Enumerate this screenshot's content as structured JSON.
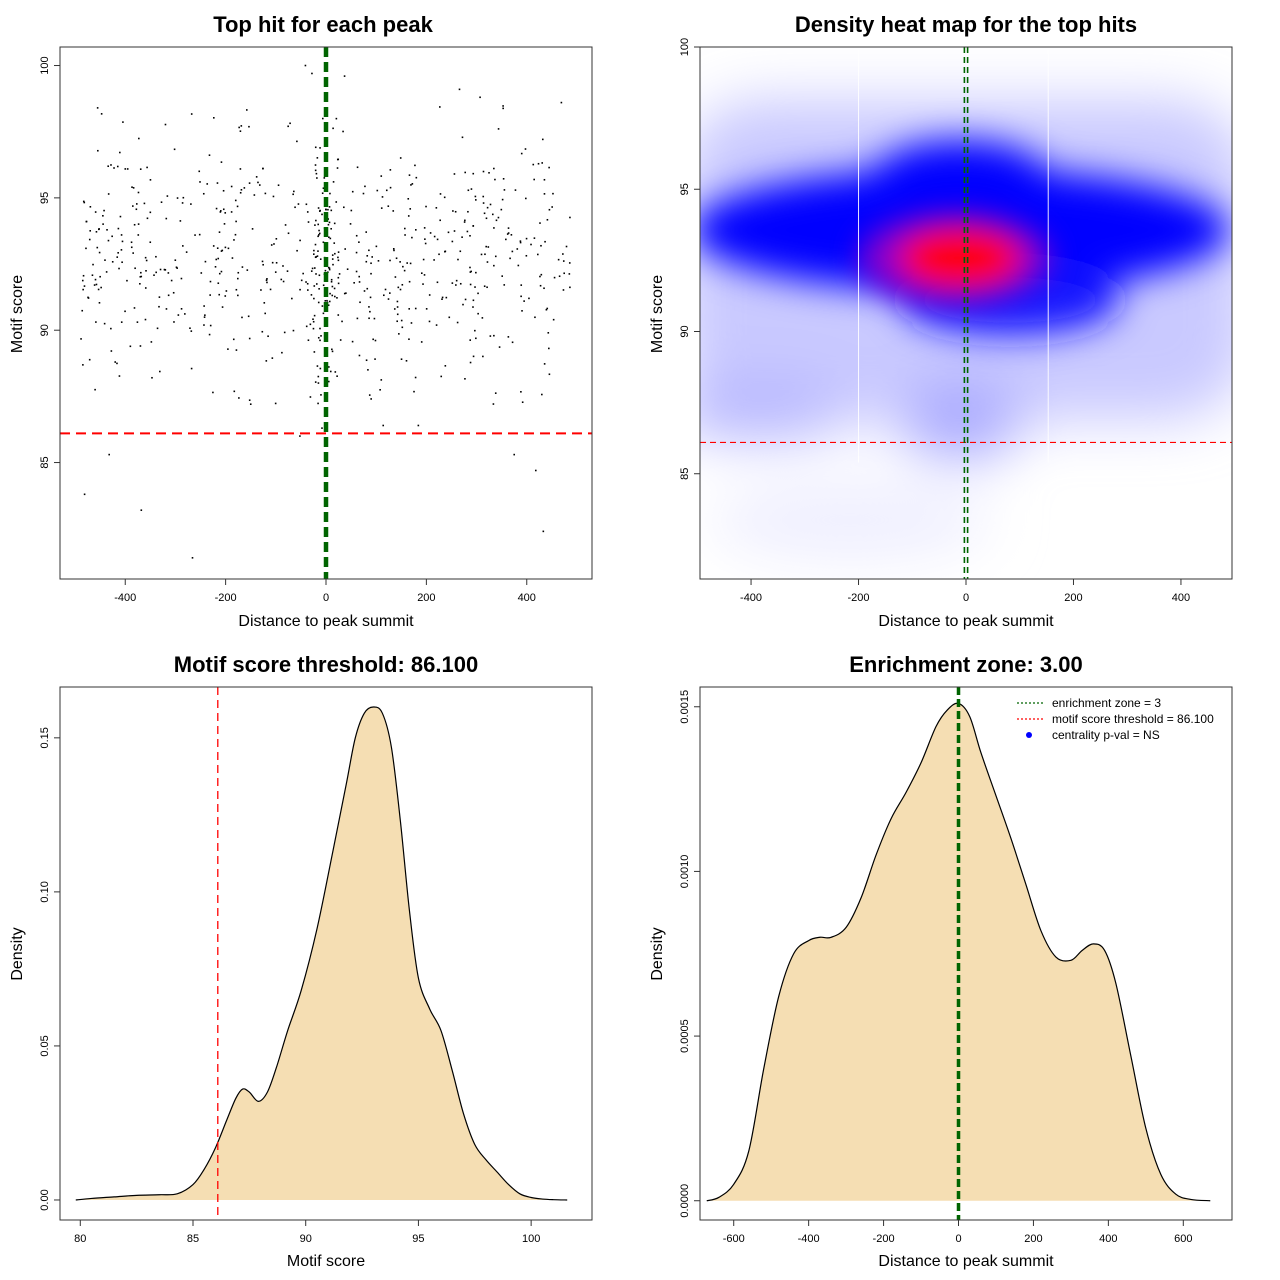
{
  "chart_data": [
    {
      "id": "scatter",
      "type": "scatter",
      "title": "Top hit for each peak",
      "xlabel": "Distance to peak summit",
      "ylabel": "Motif score",
      "xlim": [
        -530,
        530
      ],
      "ylim": [
        80.6,
        100.7
      ],
      "xticks": [
        -400,
        -200,
        0,
        200,
        400
      ],
      "yticks": [
        85,
        90,
        95,
        100
      ],
      "threshold": 86.1,
      "center_lines": [
        -1.5,
        1.5
      ],
      "cluster": {
        "x_range": [
          -490,
          490
        ],
        "y_mean": 92.6,
        "y_sd": 2.4
      },
      "outliers": [
        {
          "x": -481,
          "y": 83.8
        },
        {
          "x": -368,
          "y": 83.2
        },
        {
          "x": -266,
          "y": 81.4
        },
        {
          "x": -432,
          "y": 85.3
        },
        {
          "x": 433,
          "y": 82.4
        },
        {
          "x": 418,
          "y": 84.7
        },
        {
          "x": 375,
          "y": 85.3
        },
        {
          "x": -455,
          "y": 98.4
        },
        {
          "x": -41,
          "y": 100.0
        },
        {
          "x": -28,
          "y": 99.7
        },
        {
          "x": 37,
          "y": 99.6
        },
        {
          "x": 469,
          "y": 98.6
        },
        {
          "x": 266,
          "y": 99.1
        },
        {
          "x": 307,
          "y": 98.8
        },
        {
          "x": -8,
          "y": 86.3
        },
        {
          "x": -52,
          "y": 86.0
        },
        {
          "x": 114,
          "y": 86.4
        },
        {
          "x": 184,
          "y": 86.4
        }
      ]
    },
    {
      "id": "heatmap",
      "type": "heatmap",
      "title": "Density heat map for the top hits",
      "xlabel": "Distance to peak summit",
      "ylabel": "Motif score",
      "xlim": [
        -495,
        495
      ],
      "ylim": [
        81.3,
        100.0
      ],
      "xticks": [
        -400,
        -200,
        0,
        200,
        400
      ],
      "yticks": [
        85,
        90,
        95,
        100
      ],
      "threshold": 86.1,
      "center_lines": [
        -3,
        3
      ],
      "grid_lines_x": [
        -200,
        153
      ],
      "hotspot": {
        "x": 0,
        "y": 92.6
      },
      "colors": {
        "low": "#ffffff",
        "mid": "#0000ff",
        "high": "#ff0000"
      }
    },
    {
      "id": "score-density",
      "type": "area",
      "title": "Motif score threshold: 86.100",
      "xlabel": "Motif score",
      "ylabel": "Density",
      "xlim": [
        79.1,
        102.7
      ],
      "ylim": [
        -0.0065,
        0.1665
      ],
      "xticks": [
        80,
        85,
        90,
        95,
        100
      ],
      "yticks": [
        0.0,
        0.05,
        0.1,
        0.15
      ],
      "ytick_labels": [
        "0.00",
        "0.05",
        "0.10",
        "0.15"
      ],
      "threshold": 86.1,
      "x": [
        79.8,
        80.5,
        81.5,
        82.5,
        83.5,
        84.3,
        85.0,
        85.5,
        86.0,
        86.5,
        86.9,
        87.2,
        87.5,
        87.9,
        88.3,
        88.7,
        89.2,
        89.8,
        90.5,
        91.2,
        91.8,
        92.2,
        92.6,
        93.0,
        93.4,
        93.8,
        94.2,
        94.6,
        95.0,
        95.5,
        96.0,
        96.5,
        97.0,
        97.5,
        98.0,
        98.5,
        99.0,
        99.5,
        100.0,
        100.5,
        101.0,
        101.6
      ],
      "values": [
        0.0,
        0.0005,
        0.001,
        0.0015,
        0.0017,
        0.002,
        0.005,
        0.01,
        0.017,
        0.026,
        0.033,
        0.036,
        0.035,
        0.032,
        0.035,
        0.043,
        0.055,
        0.068,
        0.088,
        0.113,
        0.135,
        0.15,
        0.158,
        0.16,
        0.158,
        0.147,
        0.123,
        0.094,
        0.072,
        0.062,
        0.055,
        0.042,
        0.028,
        0.018,
        0.013,
        0.009,
        0.005,
        0.002,
        0.0008,
        0.0003,
        0.0001,
        0.0
      ]
    },
    {
      "id": "distance-density",
      "type": "area",
      "title": "Enrichment zone: 3.00",
      "xlabel": "Distance to peak summit",
      "ylabel": "Density",
      "xlim": [
        -690,
        730
      ],
      "ylim": [
        -5.85e-05,
        0.00156
      ],
      "xticks": [
        -600,
        -400,
        -200,
        0,
        200,
        400,
        600
      ],
      "yticks": [
        0.0,
        0.0005,
        0.001,
        0.0015
      ],
      "ytick_labels": [
        "0.0000",
        "0.0005",
        "0.0010",
        "0.0015"
      ],
      "center_lines": [
        -1.5,
        1.5
      ],
      "x": [
        -672,
        -640,
        -600,
        -560,
        -520,
        -480,
        -440,
        -400,
        -370,
        -340,
        -300,
        -260,
        -220,
        -180,
        -140,
        -100,
        -60,
        -30,
        0,
        30,
        60,
        100,
        140,
        180,
        220,
        260,
        300,
        330,
        360,
        390,
        420,
        460,
        500,
        540,
        580,
        620,
        672
      ],
      "values": [
        0.0,
        1e-05,
        5e-05,
        0.00015,
        0.0004,
        0.00062,
        0.00075,
        0.00079,
        0.0008,
        0.0008,
        0.00083,
        0.00092,
        0.00105,
        0.00116,
        0.00124,
        0.00133,
        0.00144,
        0.00149,
        0.00151,
        0.00147,
        0.00136,
        0.00123,
        0.0011,
        0.00096,
        0.00082,
        0.00074,
        0.00073,
        0.00076,
        0.00078,
        0.00076,
        0.00066,
        0.00044,
        0.00022,
        8e-05,
        2e-05,
        4e-06,
        0.0
      ],
      "legend": [
        {
          "label": "enrichment zone = 3",
          "color": "#006400",
          "kind": "line"
        },
        {
          "label": "motif score threshold = 86.100",
          "color": "#ff0000",
          "kind": "line"
        },
        {
          "label": "centrality p-val = NS",
          "color": "#0000ff",
          "kind": "dot"
        }
      ]
    }
  ]
}
